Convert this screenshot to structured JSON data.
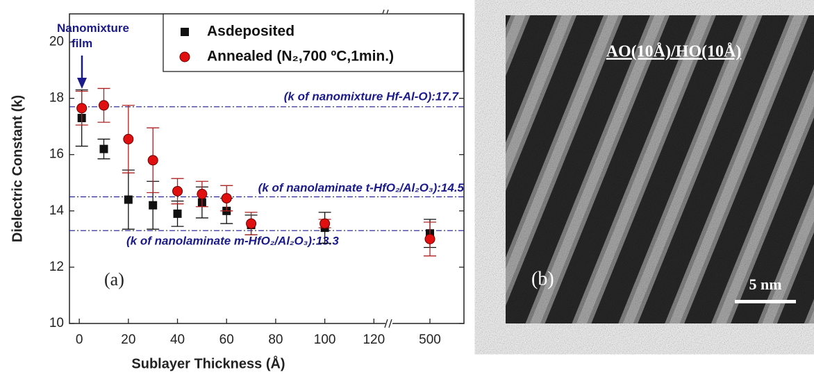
{
  "chart_data": {
    "type": "scatter",
    "x_label": "Sublayer Thickness (Å)",
    "y_label": "Dielectric Constant (k)",
    "x": [
      1,
      10,
      20,
      30,
      40,
      50,
      60,
      70,
      100,
      500
    ],
    "series": [
      {
        "name": "Asdeposited",
        "color": "#111111",
        "marker": "square",
        "values": [
          17.3,
          16.2,
          14.4,
          14.2,
          13.9,
          14.3,
          14.0,
          13.5,
          13.4,
          13.2
        ],
        "errors": [
          1.0,
          0.35,
          1.05,
          0.85,
          0.45,
          0.55,
          0.45,
          0.35,
          0.55,
          0.5
        ]
      },
      {
        "name": "Annealed (N₂,700 ºC,1min.)",
        "color": "#e01010",
        "marker": "circle",
        "values": [
          17.65,
          17.75,
          16.55,
          15.8,
          14.7,
          14.6,
          14.45,
          13.55,
          13.55,
          13.0
        ],
        "errors": [
          0.6,
          0.6,
          1.2,
          1.15,
          0.45,
          0.45,
          0.45,
          0.4,
          0.15,
          0.6
        ]
      }
    ],
    "reference_lines": [
      {
        "value": 17.7,
        "label": "(k of nanomixture Hf-Al-O):17.7"
      },
      {
        "value": 14.5,
        "label": "(k of nanolaminate t-HfO₂/Al₂O₃):14.5"
      },
      {
        "value": 13.3,
        "label": "(k of nanolaminate m-HfO₂/Al₂O₃):13.3"
      }
    ],
    "annotations": [
      "Nanomixture film",
      "(a)"
    ],
    "xlim": [
      -4,
      513
    ],
    "xbreak": [
      125,
      485
    ],
    "xticks": [
      0,
      20,
      40,
      60,
      80,
      100,
      120,
      500
    ],
    "ylim": [
      10,
      21
    ],
    "yticks": [
      10,
      12,
      14,
      16,
      18,
      20
    ],
    "legend": "upper right"
  },
  "image_panel": {
    "caption": "AO(10Å)/HO(10Å)",
    "label": "(b)",
    "scale_bar": "5 nm"
  }
}
